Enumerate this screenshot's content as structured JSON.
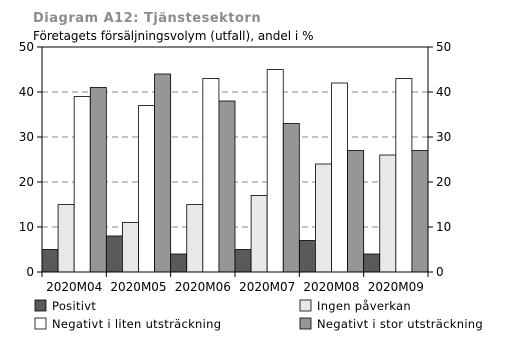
{
  "chart_data": {
    "type": "bar",
    "title": "Diagram A12: Tjänstesektorn",
    "subtitle": "Företagets försäljningsvolym (utfall), andel i %",
    "categories": [
      "2020M04",
      "2020M05",
      "2020M06",
      "2020M07",
      "2020M08",
      "2020M09"
    ],
    "series": [
      {
        "name": "Positivt",
        "color": "#5a5a5a",
        "values": [
          5,
          8,
          4,
          5,
          7,
          4
        ]
      },
      {
        "name": "Ingen påverkan",
        "color": "#e8e8e8",
        "values": [
          15,
          11,
          15,
          17,
          24,
          26
        ]
      },
      {
        "name": "Negativt i liten utsträckning",
        "color": "#ffffff",
        "values": [
          39,
          37,
          43,
          45,
          42,
          43
        ]
      },
      {
        "name": "Negativt i stor utsträckning",
        "color": "#969696",
        "values": [
          41,
          44,
          38,
          33,
          27,
          27
        ]
      }
    ],
    "ylim": [
      0,
      50
    ],
    "yticks": [
      0,
      10,
      20,
      30,
      40,
      50
    ],
    "grid": "dashed horizontal",
    "legend_position": "bottom"
  }
}
